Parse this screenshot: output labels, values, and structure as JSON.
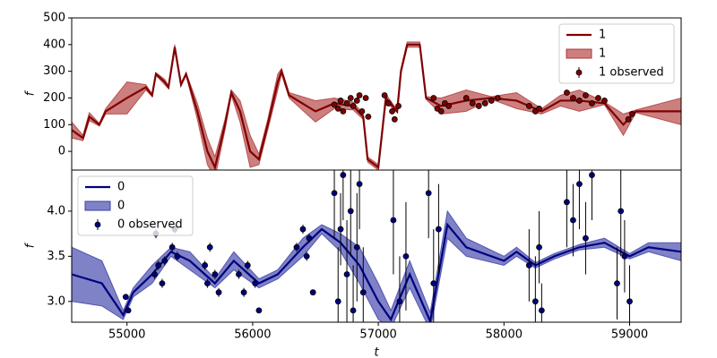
{
  "chart_data": [
    {
      "type": "line",
      "ylabel": "f",
      "xlim": [
        54560,
        59410
      ],
      "ylim": [
        -70,
        500
      ],
      "yticks": [
        0,
        100,
        200,
        300,
        400,
        500
      ],
      "legend": "upper right",
      "x": [
        54560,
        54650,
        54700,
        54780,
        54830,
        55000,
        55150,
        55200,
        55230,
        55300,
        55330,
        55380,
        55430,
        55470,
        55560,
        55640,
        55700,
        55780,
        55830,
        55900,
        55980,
        56050,
        56120,
        56200,
        56230,
        56290,
        56500,
        56650,
        56800,
        56880,
        56915,
        57000,
        57060,
        57150,
        57180,
        57230,
        57330,
        57380,
        57500,
        57700,
        57900,
        58100,
        58300,
        58450,
        58600,
        58800,
        58950,
        59050,
        59410
      ],
      "series": [
        {
          "name": "1",
          "color": "#800000",
          "values": [
            80,
            50,
            130,
            100,
            150,
            200,
            240,
            210,
            290,
            260,
            240,
            390,
            250,
            290,
            150,
            0,
            -60,
            100,
            220,
            150,
            0,
            -30,
            100,
            260,
            300,
            210,
            150,
            180,
            170,
            130,
            -30,
            -60,
            200,
            150,
            300,
            400,
            400,
            200,
            170,
            190,
            200,
            190,
            150,
            190,
            190,
            180,
            100,
            150,
            150
          ]
        }
      ],
      "band": {
        "name": "1",
        "color": "#b03a3a",
        "lower": [
          50,
          40,
          115,
          95,
          140,
          140,
          230,
          205,
          285,
          250,
          235,
          380,
          245,
          285,
          120,
          -50,
          -100,
          80,
          210,
          110,
          -60,
          -50,
          80,
          230,
          290,
          200,
          110,
          160,
          155,
          120,
          -40,
          -70,
          185,
          145,
          290,
          390,
          390,
          195,
          140,
          150,
          195,
          160,
          140,
          170,
          150,
          175,
          60,
          145,
          100
        ],
        "upper": [
          110,
          60,
          145,
          105,
          160,
          260,
          250,
          215,
          295,
          270,
          245,
          400,
          255,
          295,
          180,
          50,
          -20,
          120,
          230,
          190,
          60,
          -10,
          120,
          290,
          310,
          220,
          190,
          200,
          185,
          140,
          -20,
          -50,
          215,
          155,
          310,
          410,
          410,
          205,
          200,
          230,
          205,
          220,
          160,
          210,
          230,
          185,
          140,
          155,
          200
        ]
      },
      "observed": {
        "name": "1 observed",
        "color": "#800000",
        "x": [
          56650,
          56680,
          56700,
          56720,
          56750,
          56780,
          56800,
          56830,
          56850,
          56870,
          56900,
          56920,
          57050,
          57080,
          57110,
          57130,
          57160,
          57440,
          57470,
          57500,
          57530,
          57560,
          57700,
          57750,
          57800,
          57850,
          57900,
          57950,
          58200,
          58250,
          58280,
          58500,
          58550,
          58600,
          58650,
          58700,
          58750,
          58800,
          59020,
          58990
        ],
        "values": [
          175,
          160,
          190,
          150,
          180,
          200,
          170,
          190,
          210,
          150,
          200,
          130,
          210,
          180,
          150,
          120,
          170,
          200,
          160,
          150,
          180,
          170,
          200,
          180,
          170,
          180,
          190,
          200,
          170,
          150,
          160,
          220,
          200,
          190,
          210,
          180,
          200,
          190,
          140,
          120
        ],
        "errors": [
          8,
          8,
          8,
          8,
          8,
          8,
          8,
          8,
          8,
          8,
          8,
          8,
          8,
          8,
          8,
          8,
          8,
          8,
          8,
          8,
          8,
          8,
          8,
          8,
          8,
          8,
          8,
          8,
          8,
          8,
          8,
          8,
          8,
          8,
          8,
          8,
          8,
          8,
          8,
          8
        ]
      }
    },
    {
      "type": "line",
      "ylabel": "f",
      "xlabel": "t",
      "xlim": [
        54560,
        59410
      ],
      "ylim": [
        2.77,
        4.455
      ],
      "xticks": [
        55000,
        56000,
        57000,
        58000,
        59000
      ],
      "yticks": [
        {
          "value": 3,
          "label": "3.0"
        },
        3.5,
        {
          "value": 4,
          "label": "4.0"
        }
      ],
      "legend": "upper left",
      "x": [
        54560,
        54800,
        54970,
        55050,
        55200,
        55350,
        55500,
        55700,
        55850,
        56050,
        56200,
        56400,
        56550,
        56700,
        56850,
        57000,
        57100,
        57250,
        57413,
        57550,
        57700,
        58000,
        58100,
        58250,
        58400,
        58600,
        58800,
        59000,
        59150,
        59410
      ],
      "series": [
        {
          "name": "0",
          "color": "#000080",
          "values": [
            3.3,
            3.2,
            2.85,
            3.1,
            3.3,
            3.55,
            3.45,
            3.2,
            3.45,
            3.2,
            3.3,
            3.6,
            3.8,
            3.65,
            3.4,
            3.0,
            2.8,
            3.3,
            2.78,
            3.85,
            3.6,
            3.45,
            3.55,
            3.4,
            3.5,
            3.6,
            3.65,
            3.5,
            3.6,
            3.55
          ]
        }
      ],
      "band": {
        "name": "0",
        "color": "#3b3fa8",
        "lower": [
          3.0,
          2.95,
          2.8,
          3.05,
          3.2,
          3.5,
          3.35,
          3.15,
          3.35,
          3.15,
          3.25,
          3.5,
          3.75,
          3.55,
          3.2,
          2.8,
          2.7,
          3.15,
          2.68,
          3.7,
          3.5,
          3.4,
          3.5,
          3.37,
          3.47,
          3.57,
          3.6,
          3.47,
          3.55,
          3.45
        ],
        "upper": [
          3.6,
          3.45,
          2.9,
          3.15,
          3.4,
          3.6,
          3.55,
          3.25,
          3.55,
          3.25,
          3.35,
          3.7,
          3.85,
          3.75,
          3.6,
          3.2,
          2.9,
          3.45,
          2.88,
          4.0,
          3.7,
          3.5,
          3.6,
          3.43,
          3.53,
          3.63,
          3.7,
          3.53,
          3.65,
          3.65
        ]
      },
      "observed": {
        "name": "0 observed",
        "color": "#000080",
        "x": [
          54990,
          55010,
          55220,
          55230,
          55250,
          55280,
          55300,
          55360,
          55380,
          55400,
          55620,
          55640,
          55660,
          55700,
          55730,
          55890,
          55930,
          55960,
          56020,
          56050,
          56350,
          56400,
          56430,
          56450,
          56480,
          56650,
          56680,
          56700,
          56720,
          56750,
          56780,
          56800,
          56830,
          56850,
          56880,
          57120,
          57170,
          57220,
          57400,
          57440,
          57480,
          58200,
          58250,
          58280,
          58300,
          58500,
          58550,
          58600,
          58650,
          58700,
          58900,
          58930,
          58960,
          59000
        ],
        "values": [
          3.05,
          2.9,
          3.3,
          3.75,
          3.4,
          3.2,
          3.45,
          3.6,
          3.8,
          3.5,
          3.4,
          3.2,
          3.6,
          3.3,
          3.1,
          3.3,
          3.1,
          3.4,
          3.2,
          2.9,
          3.6,
          3.8,
          3.5,
          3.7,
          3.1,
          4.2,
          3.0,
          3.8,
          4.4,
          3.3,
          4.0,
          2.9,
          3.6,
          4.3,
          3.1,
          3.9,
          3.0,
          3.5,
          4.2,
          3.2,
          3.8,
          3.4,
          3.0,
          3.6,
          2.9,
          4.1,
          3.9,
          4.3,
          3.7,
          4.4,
          3.2,
          4.0,
          3.5,
          3.0
        ],
        "errors": [
          0.03,
          0.03,
          0.05,
          0.05,
          0.05,
          0.05,
          0.05,
          0.05,
          0.05,
          0.05,
          0.05,
          0.05,
          0.05,
          0.05,
          0.05,
          0.05,
          0.05,
          0.05,
          0.05,
          0.03,
          0.05,
          0.05,
          0.05,
          0.05,
          0.03,
          0.5,
          0.6,
          0.4,
          0.5,
          0.6,
          0.5,
          0.5,
          0.6,
          0.5,
          0.5,
          0.6,
          0.5,
          0.6,
          0.5,
          0.6,
          0.5,
          0.4,
          0.5,
          0.4,
          0.3,
          0.5,
          0.4,
          0.5,
          0.4,
          0.5,
          0.4,
          0.5,
          0.4,
          0.4
        ]
      }
    }
  ]
}
